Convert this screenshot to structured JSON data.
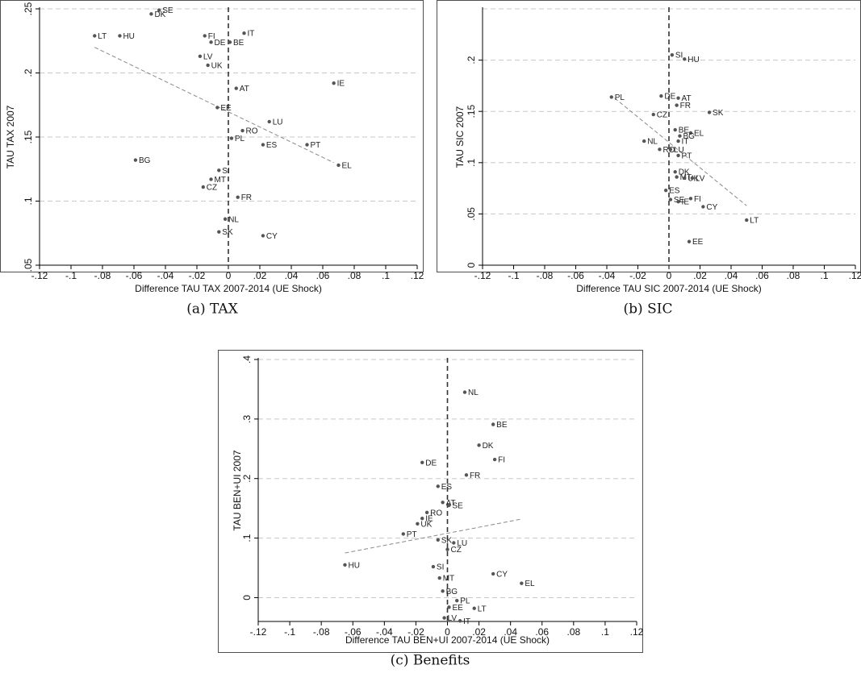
{
  "chart_data": [
    {
      "type": "scatter",
      "title": "",
      "caption": "(a) TAX",
      "xlabel": "Difference TAU TAX 2007-2014 (UE Shock)",
      "ylabel": "TAU TAX 2007",
      "xlim": [
        -0.12,
        0.12
      ],
      "ylim": [
        0.05,
        0.25
      ],
      "xticks": [
        -0.12,
        -0.1,
        -0.08,
        -0.06,
        -0.04,
        -0.02,
        0,
        0.02,
        0.04,
        0.06,
        0.08,
        0.1,
        0.12
      ],
      "xtick_labels": [
        "-.12",
        "-.1",
        "-.08",
        "-.06",
        "-.04",
        "-.02",
        "0",
        ".02",
        ".04",
        ".06",
        ".08",
        ".1",
        ".12"
      ],
      "yticks": [
        0.05,
        0.1,
        0.15,
        0.2,
        0.25
      ],
      "ytick_labels": [
        ".05",
        ".1",
        ".15",
        ".2",
        ".25"
      ],
      "grid": true,
      "fit_line": [
        [
          -0.085,
          0.22
        ],
        [
          0.067,
          0.13
        ]
      ],
      "points": [
        {
          "label": "SE",
          "x": -0.044,
          "y": 0.249
        },
        {
          "label": "DK",
          "x": -0.049,
          "y": 0.246
        },
        {
          "label": "LT",
          "x": -0.085,
          "y": 0.229
        },
        {
          "label": "HU",
          "x": -0.069,
          "y": 0.229
        },
        {
          "label": "FI",
          "x": -0.015,
          "y": 0.229
        },
        {
          "label": "IT",
          "x": 0.01,
          "y": 0.231
        },
        {
          "label": "DE",
          "x": -0.011,
          "y": 0.224
        },
        {
          "label": "BE",
          "x": 0.001,
          "y": 0.224
        },
        {
          "label": "LV",
          "x": -0.018,
          "y": 0.213
        },
        {
          "label": "UK",
          "x": -0.013,
          "y": 0.206
        },
        {
          "label": "IE",
          "x": 0.067,
          "y": 0.192
        },
        {
          "label": "AT",
          "x": 0.005,
          "y": 0.188
        },
        {
          "label": "EE",
          "x": -0.007,
          "y": 0.173
        },
        {
          "label": "LU",
          "x": 0.026,
          "y": 0.162
        },
        {
          "label": "RO",
          "x": 0.009,
          "y": 0.155
        },
        {
          "label": "PL",
          "x": 0.002,
          "y": 0.149
        },
        {
          "label": "ES",
          "x": 0.022,
          "y": 0.144
        },
        {
          "label": "PT",
          "x": 0.05,
          "y": 0.144
        },
        {
          "label": "EL",
          "x": 0.07,
          "y": 0.128
        },
        {
          "label": "BG",
          "x": -0.059,
          "y": 0.132
        },
        {
          "label": "SI",
          "x": -0.006,
          "y": 0.124
        },
        {
          "label": "MT",
          "x": -0.011,
          "y": 0.117
        },
        {
          "label": "CZ",
          "x": -0.016,
          "y": 0.111
        },
        {
          "label": "FR",
          "x": 0.006,
          "y": 0.103
        },
        {
          "label": "NL",
          "x": -0.002,
          "y": 0.086
        },
        {
          "label": "SK",
          "x": -0.006,
          "y": 0.076
        },
        {
          "label": "CY",
          "x": 0.022,
          "y": 0.073
        }
      ]
    },
    {
      "type": "scatter",
      "title": "",
      "caption": "(b) SIC",
      "xlabel": "Difference TAU SIC 2007-2014 (UE Shock)",
      "ylabel": "TAU SIC 2007",
      "xlim": [
        -0.12,
        0.12
      ],
      "ylim": [
        0,
        0.25
      ],
      "xticks": [
        -0.12,
        -0.1,
        -0.08,
        -0.06,
        -0.04,
        -0.02,
        0,
        0.02,
        0.04,
        0.06,
        0.08,
        0.1,
        0.12
      ],
      "xtick_labels": [
        "-.12",
        "-.1",
        "-.08",
        "-.06",
        "-.04",
        "-.02",
        "0",
        ".02",
        ".04",
        ".06",
        ".08",
        ".1",
        ".12"
      ],
      "yticks": [
        0,
        0.05,
        0.1,
        0.15,
        0.2
      ],
      "ytick_labels": [
        "0",
        ".05",
        ".1",
        ".15",
        ".2"
      ],
      "grid_values": [
        0.05,
        0.1,
        0.15,
        0.2,
        0.25
      ],
      "grid": true,
      "fit_line": [
        [
          -0.035,
          0.163
        ],
        [
          0.05,
          0.058
        ]
      ],
      "points": [
        {
          "label": "SI",
          "x": 0.002,
          "y": 0.205
        },
        {
          "label": "HU",
          "x": 0.01,
          "y": 0.201
        },
        {
          "label": "PL",
          "x": -0.037,
          "y": 0.164
        },
        {
          "label": "DE",
          "x": -0.005,
          "y": 0.165
        },
        {
          "label": "AT",
          "x": 0.006,
          "y": 0.163
        },
        {
          "label": "FR",
          "x": 0.005,
          "y": 0.156
        },
        {
          "label": "SK",
          "x": 0.026,
          "y": 0.149
        },
        {
          "label": "CZ",
          "x": -0.01,
          "y": 0.147
        },
        {
          "label": "BE",
          "x": 0.004,
          "y": 0.132
        },
        {
          "label": "EL",
          "x": 0.014,
          "y": 0.129
        },
        {
          "label": "BG",
          "x": 0.007,
          "y": 0.126
        },
        {
          "label": "IT",
          "x": 0.006,
          "y": 0.121
        },
        {
          "label": "NL",
          "x": -0.016,
          "y": 0.121
        },
        {
          "label": "RO",
          "x": -0.006,
          "y": 0.113
        },
        {
          "label": "LU",
          "x": 0.001,
          "y": 0.113
        },
        {
          "label": "PT",
          "x": 0.006,
          "y": 0.107
        },
        {
          "label": "DK",
          "x": 0.004,
          "y": 0.091
        },
        {
          "label": "MT",
          "x": 0.005,
          "y": 0.086
        },
        {
          "label": "UK",
          "x": 0.01,
          "y": 0.085
        },
        {
          "label": "LV",
          "x": 0.015,
          "y": 0.085
        },
        {
          "label": "ES",
          "x": -0.002,
          "y": 0.073
        },
        {
          "label": "SE",
          "x": 0.001,
          "y": 0.064
        },
        {
          "label": "IE",
          "x": 0.006,
          "y": 0.062
        },
        {
          "label": "FI",
          "x": 0.014,
          "y": 0.065
        },
        {
          "label": "CY",
          "x": 0.022,
          "y": 0.057
        },
        {
          "label": "LT",
          "x": 0.05,
          "y": 0.044
        },
        {
          "label": "EE",
          "x": 0.013,
          "y": 0.023
        }
      ]
    },
    {
      "type": "scatter",
      "title": "",
      "caption": "(c) Benefits",
      "xlabel": "Difference TAU BEN+UI 2007-2014 (UE Shock)",
      "ylabel": "TAU BEN+UI 2007",
      "xlim": [
        -0.12,
        0.12
      ],
      "ylim": [
        -0.04,
        0.4
      ],
      "xticks": [
        -0.12,
        -0.1,
        -0.08,
        -0.06,
        -0.04,
        -0.02,
        0,
        0.02,
        0.04,
        0.06,
        0.08,
        0.1,
        0.12
      ],
      "xtick_labels": [
        "-.12",
        "-.1",
        "-.08",
        "-.06",
        "-.04",
        "-.02",
        "0",
        ".02",
        ".04",
        ".06",
        ".08",
        ".1",
        ".12"
      ],
      "yticks": [
        0,
        0.1,
        0.2,
        0.3,
        0.4
      ],
      "ytick_labels": [
        "0",
        ".1",
        ".2",
        ".3",
        ".4"
      ],
      "grid": true,
      "fit_line": [
        [
          -0.065,
          0.075
        ],
        [
          0.047,
          0.132
        ]
      ],
      "points": [
        {
          "label": "NL",
          "x": 0.011,
          "y": 0.345
        },
        {
          "label": "BE",
          "x": 0.029,
          "y": 0.291
        },
        {
          "label": "DK",
          "x": 0.02,
          "y": 0.256
        },
        {
          "label": "FI",
          "x": 0.03,
          "y": 0.232
        },
        {
          "label": "DE",
          "x": -0.016,
          "y": 0.227
        },
        {
          "label": "FR",
          "x": 0.012,
          "y": 0.206
        },
        {
          "label": "ES",
          "x": -0.006,
          "y": 0.187
        },
        {
          "label": "AT",
          "x": -0.003,
          "y": 0.16
        },
        {
          "label": "SE",
          "x": 0.001,
          "y": 0.155
        },
        {
          "label": "RO",
          "x": -0.013,
          "y": 0.143
        },
        {
          "label": "IE",
          "x": -0.016,
          "y": 0.133
        },
        {
          "label": "UK",
          "x": -0.019,
          "y": 0.124
        },
        {
          "label": "PT",
          "x": -0.028,
          "y": 0.107
        },
        {
          "label": "SK",
          "x": -0.006,
          "y": 0.097
        },
        {
          "label": "LU",
          "x": 0.004,
          "y": 0.092
        },
        {
          "label": "CZ",
          "x": 0.0,
          "y": 0.081
        },
        {
          "label": "HU",
          "x": -0.065,
          "y": 0.055
        },
        {
          "label": "SI",
          "x": -0.009,
          "y": 0.052
        },
        {
          "label": "CY",
          "x": 0.029,
          "y": 0.04
        },
        {
          "label": "MT",
          "x": -0.005,
          "y": 0.033
        },
        {
          "label": "EL",
          "x": 0.047,
          "y": 0.024
        },
        {
          "label": "BG",
          "x": -0.003,
          "y": 0.011
        },
        {
          "label": "PL",
          "x": 0.006,
          "y": -0.005
        },
        {
          "label": "EE",
          "x": 0.001,
          "y": -0.016
        },
        {
          "label": "LT",
          "x": 0.017,
          "y": -0.018
        },
        {
          "label": "LV",
          "x": -0.002,
          "y": -0.034
        },
        {
          "label": "IT",
          "x": 0.008,
          "y": -0.039
        }
      ]
    }
  ]
}
